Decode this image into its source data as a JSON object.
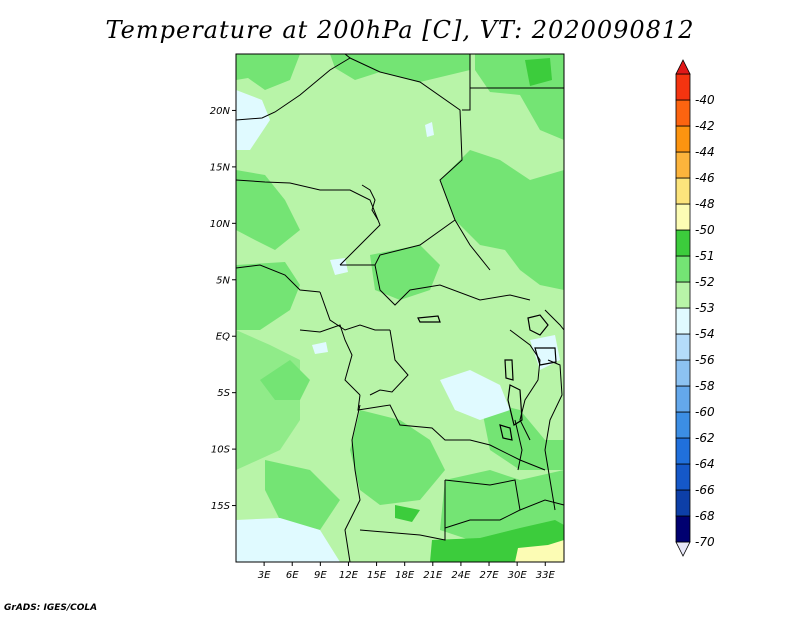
{
  "title": "Temperature at 200hPa [C], VT: 2020090812",
  "footer": "GrADS: IGES/COLA",
  "map": {
    "projection": "lat-lon",
    "lon_range": [
      0,
      35
    ],
    "lat_range": [
      -20,
      25
    ],
    "lat_labels": [
      "20N",
      "15N",
      "10N",
      "5N",
      "EQ",
      "5S",
      "10S",
      "15S"
    ],
    "lon_labels": [
      "3E",
      "6E",
      "9E",
      "12E",
      "15E",
      "18E",
      "21E",
      "24E",
      "27E",
      "30E",
      "33E"
    ]
  },
  "legend": {
    "colors": [
      "#e8e8f8",
      "#000070",
      "#0d3fa8",
      "#1558c8",
      "#2070dc",
      "#3c8ee4",
      "#64a8ec",
      "#8cc2f2",
      "#b4dcfa",
      "#e0faff",
      "#b8f4a8",
      "#74e474",
      "#3ccc3c",
      "#fcfcb4",
      "#fce47c",
      "#fcb43c",
      "#fc9410",
      "#fc6410",
      "#f43410",
      "#e01818"
    ],
    "labels": [
      "-70",
      "-68",
      "-66",
      "-64",
      "-62",
      "-60",
      "-58",
      "-56",
      "-54",
      "-53",
      "-52",
      "-51",
      "-50",
      "-48",
      "-46",
      "-44",
      "-42",
      "-40"
    ]
  }
}
